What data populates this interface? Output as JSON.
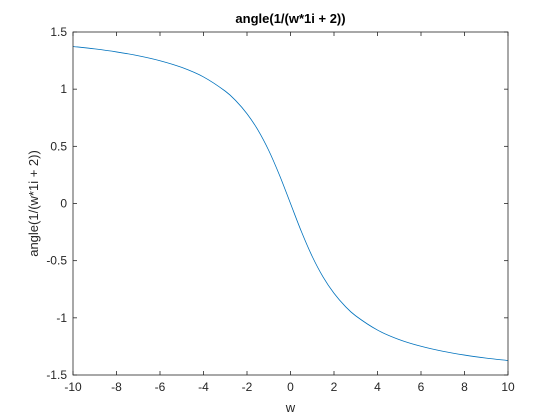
{
  "chart_data": {
    "type": "line",
    "title": "angle(1/(w*1i + 2))",
    "xlabel": "w",
    "ylabel": "angle(1/(w*1i + 2))",
    "xlim": [
      -10,
      10
    ],
    "ylim": [
      -1.5,
      1.5
    ],
    "x_ticks": [
      "-10",
      "-8",
      "-6",
      "-4",
      "-2",
      "0",
      "2",
      "4",
      "6",
      "8",
      "10"
    ],
    "y_ticks": [
      "-1.5",
      "-1",
      "-0.5",
      "0",
      "0.5",
      "1",
      "1.5"
    ],
    "grid": false,
    "legend": "none",
    "series": [
      {
        "color": "#0072BD",
        "x": [
          -10,
          -9,
          -8,
          -7,
          -6,
          -5,
          -4,
          -3,
          -2.5,
          -2,
          -1.5,
          -1,
          -0.5,
          0,
          0.5,
          1,
          1.5,
          2,
          2.5,
          3,
          4,
          5,
          6,
          7,
          8,
          9,
          10
        ],
        "y": [
          1.3734,
          1.3521,
          1.3258,
          1.2925,
          1.249,
          1.1903,
          1.1071,
          0.9828,
          0.896,
          0.7854,
          0.6435,
          0.4636,
          0.245,
          0,
          -0.245,
          -0.4636,
          -0.6435,
          -0.7854,
          -0.896,
          -0.9828,
          -1.1071,
          -1.1903,
          -1.249,
          -1.2925,
          -1.3258,
          -1.3521,
          -1.3734
        ]
      }
    ]
  },
  "colors": {
    "axis": "#262626",
    "background": "#ffffff",
    "line": "#0072BD"
  }
}
